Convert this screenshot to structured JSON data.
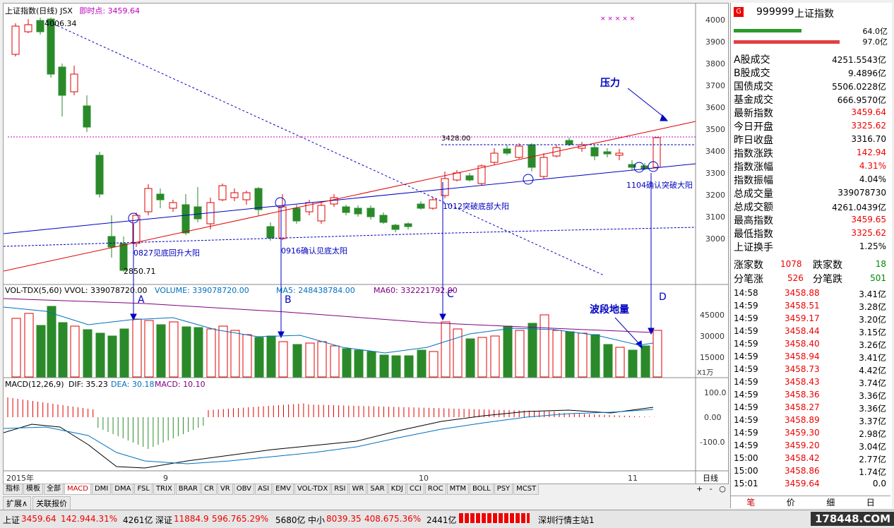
{
  "chart": {
    "title": "上证指数(日线) JSX",
    "realtime_label": "即时点: 3459.64",
    "price_axis": [
      "4000",
      "3900",
      "3800",
      "3700",
      "3600",
      "3500",
      "3400",
      "3300",
      "3200",
      "3100",
      "3000"
    ],
    "annotations": {
      "high": "4006.34",
      "low": "2850.71",
      "level": "3428.00",
      "a1": "0827见底回升大阳",
      "a2": "0916确认见底太阳",
      "a3": "1012突破底部大阳",
      "a4": "1104确认突破大阳",
      "pressure": "压力",
      "wave_vol": "波段地量",
      "A": "A",
      "B": "B",
      "C": "C",
      "D": "D"
    },
    "date_labels": [
      "2015年",
      "9",
      "10",
      "11"
    ],
    "period": "日线"
  },
  "volume": {
    "header": "VOL-TDX(5,60) VVOL: 339078720.00",
    "volume": "VOLUME: 339078720.00",
    "ma5": "MA5: 248438784.00",
    "ma60": "MA60: 332221792.00",
    "axis": [
      "45000",
      "30000",
      "15000"
    ],
    "unit": "X1万"
  },
  "macd": {
    "header": "MACD(12,26,9)",
    "dif": "DIF: 35.23",
    "dea": "DEA: 30.18",
    "macd": "MACD: 10.10",
    "axis": [
      "100.0",
      "0.00",
      "-100.0"
    ]
  },
  "indicator_tabs": [
    "指标",
    "模板",
    "全部",
    "MACD",
    "DMI",
    "DMA",
    "FSL",
    "TRIX",
    "BRAR",
    "CR",
    "VR",
    "OBV",
    "ASI",
    "EMV",
    "VOL-TDX",
    "RSI",
    "WR",
    "SAR",
    "KDJ",
    "CCI",
    "ROC",
    "MTM",
    "BOLL",
    "PSY",
    "MCST"
  ],
  "bottom_tabs": [
    "扩展∧",
    "关联报价"
  ],
  "right": {
    "code": "999999",
    "name": "上证指数",
    "bar1_value": "64.0亿",
    "bar2_value": "97.0亿",
    "stats": [
      {
        "k": "A股成交",
        "v": "4251.5543亿",
        "c": ""
      },
      {
        "k": "B股成交",
        "v": "9.4896亿",
        "c": ""
      },
      {
        "k": "国债成交",
        "v": "5506.0228亿",
        "c": ""
      },
      {
        "k": "基金成交",
        "v": "666.9570亿",
        "c": ""
      },
      {
        "k": "最新指数",
        "v": "3459.64",
        "c": "red"
      },
      {
        "k": "今日开盘",
        "v": "3325.62",
        "c": "red"
      },
      {
        "k": "昨日收盘",
        "v": "3316.70",
        "c": ""
      },
      {
        "k": "指数涨跌",
        "v": "142.94",
        "c": "red"
      },
      {
        "k": "指数涨幅",
        "v": "4.31%",
        "c": "red"
      },
      {
        "k": "指数振幅",
        "v": "4.04%",
        "c": ""
      },
      {
        "k": "总成交量",
        "v": "339078730",
        "c": ""
      },
      {
        "k": "总成交额",
        "v": "4261.0439亿",
        "c": ""
      },
      {
        "k": "最高指数",
        "v": "3459.65",
        "c": "red"
      },
      {
        "k": "最低指数",
        "v": "3325.62",
        "c": "red"
      },
      {
        "k": "上证换手",
        "v": "1.25%",
        "c": ""
      }
    ],
    "up_label": "涨家数",
    "up_value": "1078",
    "down_label": "跌家数",
    "down_value": "18",
    "bup_label": "分笔涨",
    "bup_value": "526",
    "bdown_label": "分笔跌",
    "bdown_value": "501",
    "ticks": [
      [
        "14:58",
        "3458.88",
        "3.41亿"
      ],
      [
        "14:59",
        "3458.51",
        "3.28亿"
      ],
      [
        "14:59",
        "3459.17",
        "3.20亿"
      ],
      [
        "14:59",
        "3458.44",
        "3.15亿"
      ],
      [
        "14:59",
        "3458.40",
        "3.26亿"
      ],
      [
        "14:59",
        "3458.94",
        "3.41亿"
      ],
      [
        "14:59",
        "3458.73",
        "4.42亿"
      ],
      [
        "14:59",
        "3458.43",
        "3.74亿"
      ],
      [
        "14:59",
        "3458.36",
        "3.36亿"
      ],
      [
        "14:59",
        "3458.27",
        "3.36亿"
      ],
      [
        "14:59",
        "3458.89",
        "3.37亿"
      ],
      [
        "14:59",
        "3459.30",
        "2.98亿"
      ],
      [
        "14:59",
        "3459.20",
        "3.04亿"
      ],
      [
        "15:00",
        "3458.42",
        "2.77亿"
      ],
      [
        "15:00",
        "3458.86",
        "1.74亿"
      ],
      [
        "15:01",
        "3459.64",
        "0.0"
      ]
    ],
    "tabs": [
      "笔",
      "价",
      "细",
      "日"
    ]
  },
  "status": {
    "sh_label": "上证",
    "sh_value": "3459.64",
    "sh_change": "142.94",
    "sh_pct": "4.31%",
    "sh_amount": "4261亿",
    "sz_label": "深证",
    "sz_value": "11884.9",
    "sz_change": "596.76",
    "sz_pct": "5.29%",
    "sz_amount": "5680亿",
    "zx_label": "中小",
    "zx_value": "8039.35",
    "zx_change": "408.67",
    "zx_pct": "5.36%",
    "zx_amount": "2441亿",
    "server": "深圳行情主站1",
    "watermark": "178448.COM"
  },
  "colors": {
    "up": "#e00000",
    "down": "#008000",
    "blue": "#0000c0",
    "bg": "#ffffff"
  }
}
